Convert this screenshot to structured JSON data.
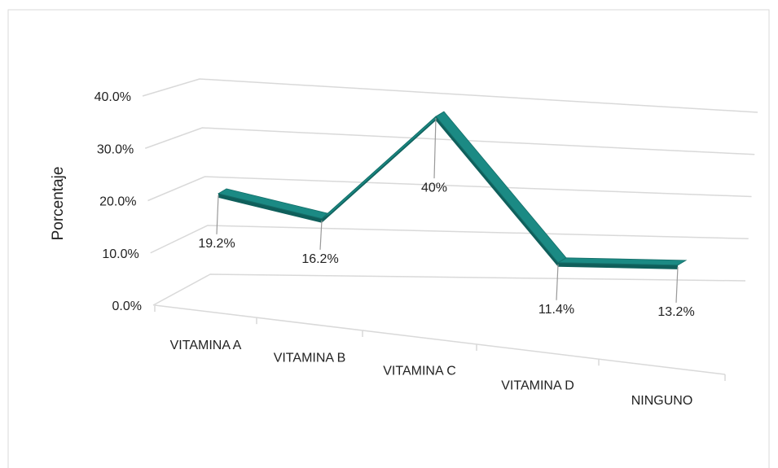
{
  "chart_data": {
    "type": "line3d",
    "y_label": "Porcentaje",
    "categories": [
      "VITAMINA A",
      "VITAMINA B",
      "VITAMINA C",
      "VITAMINA D",
      "NINGUNO"
    ],
    "values": [
      19.2,
      16.2,
      40,
      11.4,
      13.2
    ],
    "value_labels": [
      "19.2%",
      "16.2%",
      "40%",
      "11.4%",
      "13.2%"
    ],
    "color": "#1b8a84",
    "ylim": [
      0,
      40
    ],
    "yticks": [
      {
        "value": 0,
        "label": "0.0%"
      },
      {
        "value": 10,
        "label": "10.0%"
      },
      {
        "value": 20,
        "label": "20.0%"
      },
      {
        "value": 30,
        "label": "30.0%"
      },
      {
        "value": 40,
        "label": "40.0%"
      }
    ],
    "grid": true
  }
}
